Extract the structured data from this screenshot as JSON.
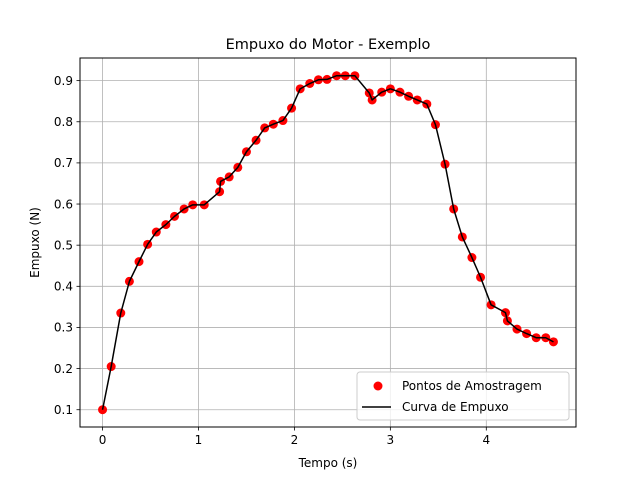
{
  "chart_data": {
    "type": "scatter",
    "title": "Empuxo do Motor - Exemplo",
    "xlabel": "Tempo (s)",
    "ylabel": "Empuxo (N)",
    "xlim": [
      -0.235,
      4.935
    ],
    "ylim": [
      0.058,
      0.955
    ],
    "xticks": [
      0,
      1,
      2,
      3,
      4
    ],
    "yticks": [
      0.1,
      0.2,
      0.3,
      0.4,
      0.5,
      0.6,
      0.7,
      0.8,
      0.9
    ],
    "xtick_labels": [
      "0",
      "1",
      "2",
      "3",
      "4"
    ],
    "ytick_labels": [
      "0.1",
      "0.2",
      "0.3",
      "0.4",
      "0.5",
      "0.6",
      "0.7",
      "0.8",
      "0.9"
    ],
    "grid": true,
    "legend_position": "lower-right",
    "x": [
      0.0,
      0.09,
      0.19,
      0.28,
      0.38,
      0.47,
      0.56,
      0.66,
      0.75,
      0.85,
      0.94,
      1.06,
      1.22,
      1.23,
      1.32,
      1.41,
      1.5,
      1.6,
      1.69,
      1.78,
      1.88,
      1.97,
      2.06,
      2.16,
      2.25,
      2.34,
      2.44,
      2.53,
      2.63,
      2.78,
      2.81,
      2.91,
      3.0,
      3.1,
      3.19,
      3.28,
      3.38,
      3.47,
      3.57,
      3.66,
      3.75,
      3.85,
      3.94,
      4.05,
      4.2,
      4.22,
      4.32,
      4.42,
      4.52,
      4.62,
      4.7
    ],
    "series": [
      {
        "name": "Pontos de Amostragem",
        "kind": "scatter",
        "color": "#ff0000",
        "values": [
          0.1,
          0.205,
          0.335,
          0.412,
          0.46,
          0.502,
          0.532,
          0.55,
          0.57,
          0.588,
          0.598,
          0.598,
          0.63,
          0.655,
          0.666,
          0.689,
          0.727,
          0.755,
          0.785,
          0.794,
          0.803,
          0.833,
          0.88,
          0.893,
          0.902,
          0.903,
          0.912,
          0.912,
          0.912,
          0.87,
          0.853,
          0.872,
          0.88,
          0.872,
          0.862,
          0.853,
          0.843,
          0.793,
          0.697,
          0.588,
          0.52,
          0.47,
          0.422,
          0.355,
          0.336,
          0.316,
          0.296,
          0.285,
          0.275,
          0.275,
          0.265
        ]
      },
      {
        "name": "Curva de Empuxo",
        "kind": "line",
        "color": "#000000",
        "values": [
          0.1,
          0.205,
          0.335,
          0.412,
          0.46,
          0.502,
          0.532,
          0.55,
          0.57,
          0.588,
          0.598,
          0.598,
          0.63,
          0.655,
          0.666,
          0.689,
          0.727,
          0.755,
          0.785,
          0.794,
          0.803,
          0.833,
          0.88,
          0.893,
          0.902,
          0.903,
          0.912,
          0.912,
          0.912,
          0.87,
          0.853,
          0.872,
          0.88,
          0.872,
          0.862,
          0.853,
          0.843,
          0.793,
          0.697,
          0.588,
          0.52,
          0.47,
          0.422,
          0.355,
          0.336,
          0.316,
          0.296,
          0.285,
          0.275,
          0.275,
          0.265
        ]
      }
    ]
  }
}
